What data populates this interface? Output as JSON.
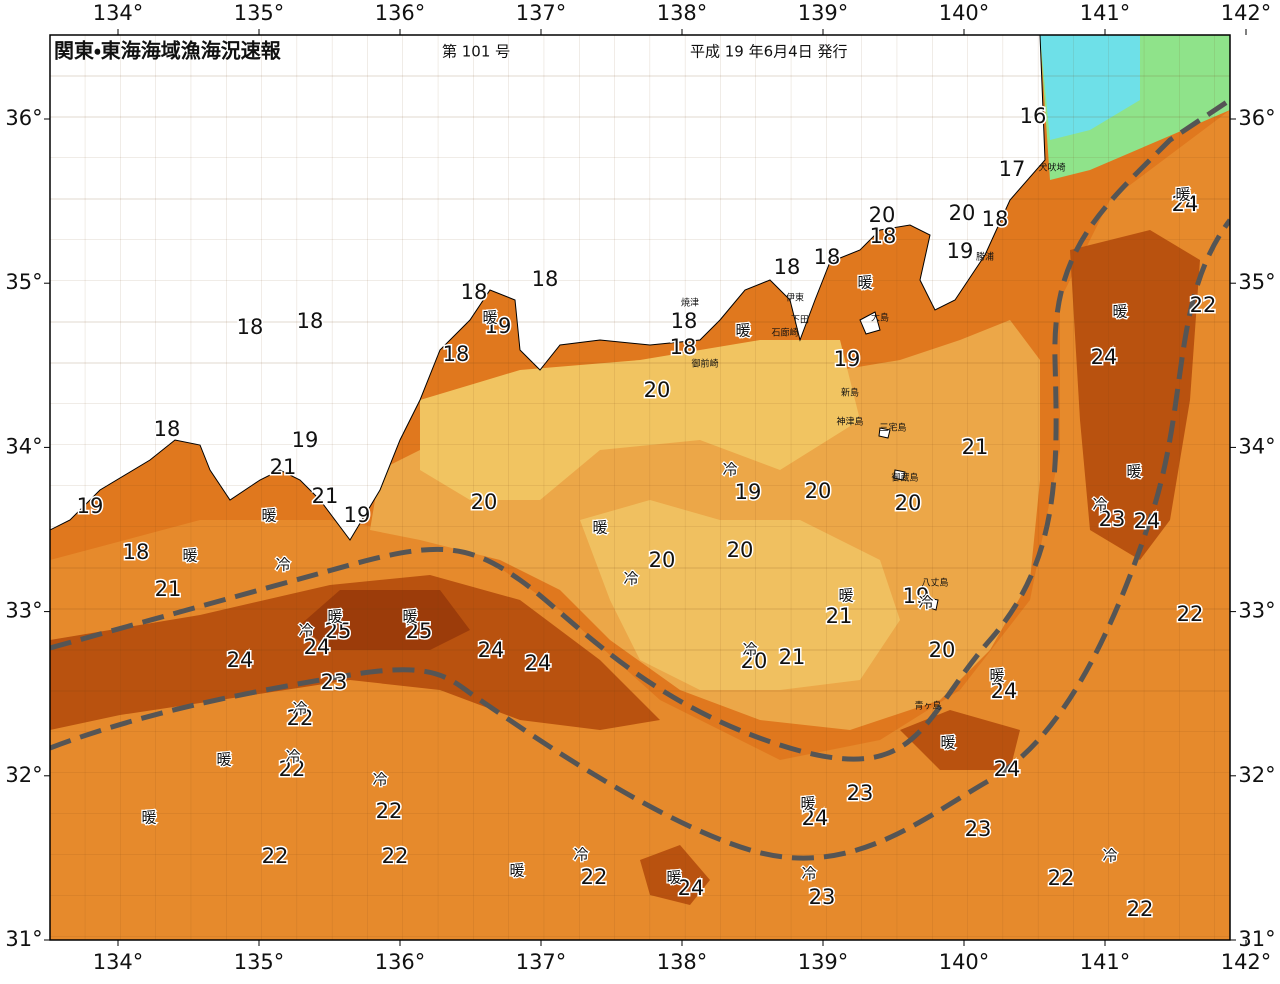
{
  "header": {
    "title": "関東・東海海域漁海況速報",
    "issue": "第 101 号",
    "date": "平成 19 年6月4日 発行"
  },
  "axes": {
    "lon_ticks": [
      {
        "value": 134,
        "label": "134°"
      },
      {
        "value": 135,
        "label": "135°"
      },
      {
        "value": 136,
        "label": "136°"
      },
      {
        "value": 137,
        "label": "137°"
      },
      {
        "value": 138,
        "label": "138°"
      },
      {
        "value": 139,
        "label": "139°"
      },
      {
        "value": 140,
        "label": "140°"
      },
      {
        "value": 141,
        "label": "141°"
      },
      {
        "value": 142,
        "label": "142°"
      }
    ],
    "lat_ticks": [
      {
        "value": 31,
        "label": "31°"
      },
      {
        "value": 32,
        "label": "32°"
      },
      {
        "value": 33,
        "label": "33°"
      },
      {
        "value": 34,
        "label": "34°"
      },
      {
        "value": 35,
        "label": "35°"
      },
      {
        "value": 36,
        "label": "36°"
      }
    ]
  },
  "temperature_labels": [
    16,
    17,
    18,
    20,
    20,
    18,
    19,
    18,
    18,
    18,
    18,
    19,
    18,
    18,
    18,
    18,
    18,
    19,
    20,
    18,
    19,
    21,
    21,
    19,
    19,
    18,
    21,
    20,
    19,
    20,
    21,
    20,
    20,
    20,
    23,
    24,
    24,
    22,
    24,
    19,
    21,
    22,
    20,
    20,
    21,
    25,
    25,
    24,
    24,
    24,
    24,
    23,
    22,
    22,
    24,
    24,
    23,
    24,
    22,
    23,
    22,
    22,
    22,
    24,
    23,
    22,
    22
  ],
  "eddy_labels": [
    "暖",
    "暖",
    "暖",
    "冷",
    "暖",
    "暖",
    "暖",
    "暖",
    "暖",
    "冷",
    "冷",
    "暖",
    "冷",
    "暖",
    "冷",
    "冷",
    "暖",
    "暖",
    "冷",
    "冷",
    "冷",
    "暖",
    "暖",
    "暖",
    "冷",
    "暖",
    "暖",
    "冷",
    "暖",
    "暖",
    "冷",
    "冷"
  ],
  "place_names": [
    "犬吠埼",
    "勝浦",
    "大島",
    "新島",
    "神津島",
    "三宅島",
    "御蔵島",
    "八丈島",
    "青ヶ島",
    "石廊崎",
    "下田",
    "伊東",
    "焼津",
    "御前崎"
  ]
}
